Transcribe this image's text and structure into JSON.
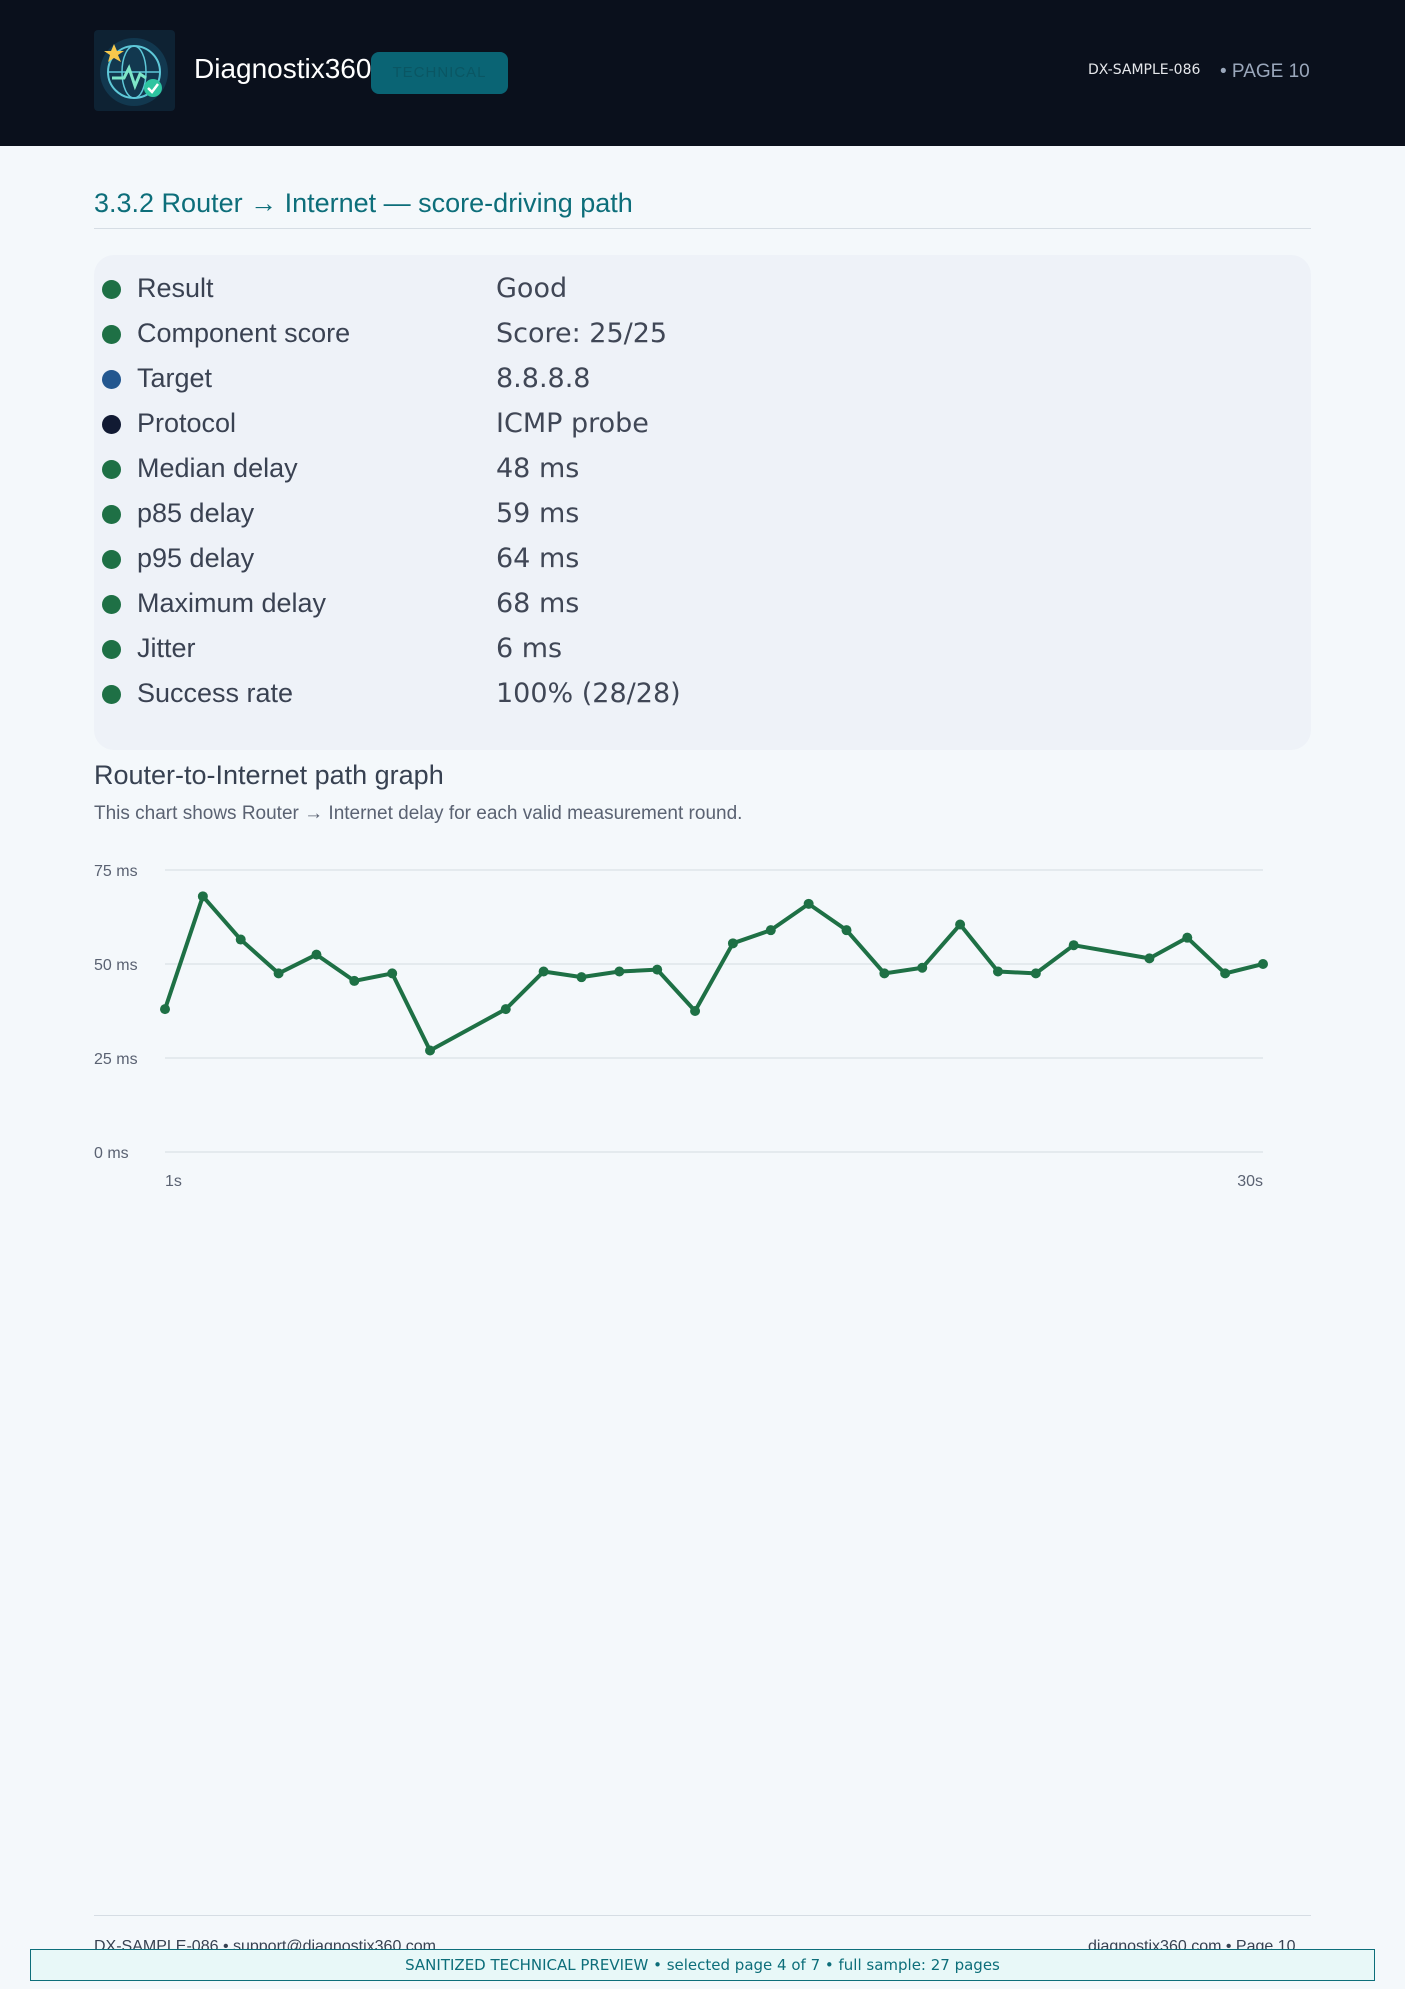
{
  "header": {
    "brand": "Diagnostix360",
    "badge": "TECHNICAL",
    "doc_id": "DX-SAMPLE-086",
    "page_label": "• PAGE 10"
  },
  "section": {
    "title": "3.3.2 Router → Internet — score-driving path"
  },
  "details": [
    {
      "label": "Result",
      "value": "Good",
      "status_color": "#1e7045"
    },
    {
      "label": "Component score",
      "value": "Score: 25/25",
      "status_color": "#1e7045"
    },
    {
      "label": "Target",
      "value": "8.8.8.8",
      "status_color": "#23578f"
    },
    {
      "label": "Protocol",
      "value": "ICMP probe",
      "status_color": "#111a33"
    },
    {
      "label": "Median delay",
      "value": "48 ms",
      "status_color": "#1e7045"
    },
    {
      "label": "p85 delay",
      "value": "59 ms",
      "status_color": "#1e7045"
    },
    {
      "label": "p95 delay",
      "value": "64 ms",
      "status_color": "#1e7045"
    },
    {
      "label": "Maximum delay",
      "value": "68 ms",
      "status_color": "#1e7045"
    },
    {
      "label": "Jitter",
      "value": "6 ms",
      "status_color": "#1e7045"
    },
    {
      "label": "Success rate",
      "value": "100% (28/28)",
      "status_color": "#1e7045"
    }
  ],
  "graph": {
    "title": "Router-to-Internet path graph",
    "subtitle": "This chart shows Router → Internet delay for each valid measurement round."
  },
  "chart_data": {
    "type": "line",
    "x": [
      1,
      2,
      3,
      4,
      5,
      6,
      7,
      8,
      10,
      11,
      12,
      13,
      14,
      15,
      16,
      17,
      18,
      19,
      20,
      21,
      22,
      23,
      24,
      25,
      27,
      28,
      29,
      30
    ],
    "series": [
      {
        "values": [
          38,
          68,
          56.5,
          47.5,
          52.5,
          45.5,
          47.5,
          27,
          38,
          48,
          46.5,
          48,
          48.5,
          37.5,
          55.5,
          59,
          66,
          59,
          47.5,
          49,
          60.5,
          48,
          47.5,
          55,
          51.5,
          57,
          47.5,
          50
        ]
      }
    ],
    "ylim": [
      0,
      75
    ],
    "y_ticks": [
      "0 ms",
      "25 ms",
      "50 ms",
      "75 ms"
    ],
    "y_tick_values": [
      0,
      25,
      50,
      75
    ],
    "x_tick_labels": [
      "1s",
      "30s"
    ],
    "grid": true,
    "line_color": "#1e7045"
  },
  "footer": {
    "left": "DX-SAMPLE-086 • support@diagnostix360.com",
    "right": "diagnostix360.com • Page 10",
    "preview_notice": "SANITIZED TECHNICAL PREVIEW • selected page 4 of 7 • full sample: 27 pages"
  }
}
